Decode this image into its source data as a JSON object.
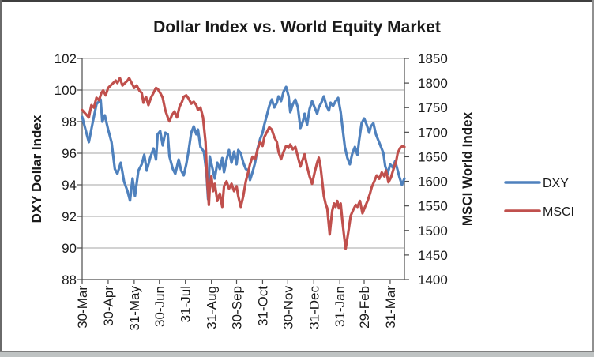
{
  "title": "Dollar Index vs. World Equity Market",
  "legend": {
    "items": [
      {
        "label": "DXY",
        "color": "#4F81BD"
      },
      {
        "label": "MSCI",
        "color": "#C0504D"
      }
    ]
  },
  "colors": {
    "dxy": "#4F81BD",
    "msci": "#C0504D",
    "gridline": "#A6A6A6",
    "axis": "#4d4d4d",
    "text": "#1a1a1a"
  },
  "chart_data": {
    "type": "line",
    "title": "Dollar Index vs. World Equity Market",
    "grid": true,
    "legend_position": "right",
    "left_axis": {
      "title": "DXY Dollar Index",
      "min": 88,
      "max": 102,
      "step": 2
    },
    "right_axis": {
      "title": "MSCI World Index",
      "min": 1400,
      "max": 1850,
      "step": 50
    },
    "x_axis": {
      "domain_days": [
        0,
        384
      ],
      "tick_days": [
        0,
        31,
        62,
        92,
        123,
        154,
        184,
        215,
        245,
        276,
        307,
        336,
        367
      ],
      "tick_labels": [
        "30-Mar",
        "30-Apr",
        "31-May",
        "30-Jun",
        "31-Jul",
        "31-Aug",
        "30-Sep",
        "31-Oct",
        "30-Nov",
        "31-Dec",
        "31-Jan",
        "29-Feb",
        "31-Mar"
      ]
    },
    "series": [
      {
        "name": "DXY",
        "axis": "left",
        "color": "#4F81BD",
        "x_days": [
          0,
          8,
          12,
          17,
          22,
          24,
          27,
          31,
          35,
          39,
          42,
          46,
          50,
          54,
          57,
          60,
          63,
          67,
          71,
          74,
          77,
          81,
          85,
          88,
          90,
          93,
          96,
          99,
          102,
          104,
          108,
          111,
          115,
          118,
          121,
          124,
          127,
          130,
          133,
          136,
          138,
          141,
          145,
          148,
          150,
          152,
          155,
          158,
          161,
          164,
          167,
          169,
          172,
          175,
          178,
          181,
          184,
          186,
          189,
          192,
          195,
          198,
          200,
          203,
          206,
          209,
          212,
          215,
          217,
          220,
          223,
          226,
          229,
          232,
          234,
          237,
          240,
          243,
          246,
          248,
          251,
          254,
          257,
          260,
          263,
          265,
          268,
          271,
          274,
          277,
          280,
          282,
          285,
          288,
          291,
          294,
          296,
          299,
          302,
          305,
          308,
          311,
          313,
          316,
          319,
          322,
          325,
          328,
          330,
          333,
          336,
          339,
          342,
          344,
          347,
          350,
          353,
          356,
          359,
          361,
          364,
          367,
          370,
          373,
          376,
          378,
          381,
          384
        ],
        "values": [
          98.3,
          96.7,
          97.8,
          99.1,
          99.4,
          98.0,
          98.4,
          97.5,
          96.7,
          95.0,
          94.7,
          95.4,
          94.2,
          93.6,
          93.0,
          94.4,
          93.3,
          94.9,
          95.3,
          95.9,
          94.9,
          95.7,
          96.3,
          95.6,
          97.2,
          97.4,
          96.5,
          97.3,
          97.2,
          95.8,
          95.0,
          94.7,
          95.6,
          94.9,
          94.6,
          95.3,
          96.2,
          97.3,
          97.7,
          97.2,
          97.5,
          96.4,
          96.1,
          94.8,
          93.1,
          95.8,
          95.1,
          94.4,
          95.4,
          95.0,
          95.7,
          94.8,
          95.6,
          96.2,
          95.4,
          96.1,
          95.3,
          96.2,
          96.0,
          95.4,
          95.0,
          94.9,
          94.3,
          94.8,
          95.4,
          96.3,
          96.9,
          97.3,
          97.8,
          98.4,
          99.0,
          99.4,
          98.9,
          99.2,
          99.6,
          99.3,
          99.9,
          100.2,
          99.6,
          98.6,
          99.1,
          99.4,
          98.9,
          97.6,
          98.0,
          98.5,
          97.8,
          98.8,
          99.3,
          98.9,
          98.5,
          98.9,
          99.2,
          99.6,
          99.0,
          98.7,
          99.2,
          99.0,
          99.3,
          99.5,
          98.6,
          97.3,
          96.4,
          95.7,
          95.3,
          96.0,
          96.4,
          95.9,
          96.8,
          97.9,
          98.2,
          97.8,
          97.3,
          97.7,
          97.9,
          97.2,
          96.8,
          96.4,
          96.0,
          95.2,
          94.7,
          95.3,
          95.1,
          95.5,
          94.9,
          94.5,
          94.0,
          94.4
        ]
      },
      {
        "name": "MSCI",
        "axis": "right",
        "color": "#C0504D",
        "x_days": [
          0,
          8,
          11,
          14,
          17,
          20,
          23,
          25,
          28,
          31,
          34,
          37,
          40,
          42,
          45,
          48,
          51,
          54,
          56,
          59,
          62,
          65,
          68,
          71,
          73,
          76,
          79,
          82,
          85,
          88,
          90,
          93,
          96,
          99,
          102,
          104,
          107,
          110,
          113,
          116,
          119,
          121,
          124,
          127,
          130,
          133,
          136,
          138,
          141,
          144,
          147,
          149,
          151,
          152,
          154,
          156,
          158,
          161,
          164,
          167,
          169,
          172,
          175,
          178,
          181,
          184,
          186,
          189,
          192,
          195,
          198,
          200,
          203,
          206,
          209,
          212,
          215,
          217,
          220,
          223,
          226,
          229,
          232,
          234,
          237,
          240,
          243,
          246,
          248,
          251,
          254,
          257,
          260,
          263,
          265,
          268,
          271,
          274,
          277,
          280,
          282,
          284,
          286,
          288,
          290,
          292,
          295,
          296,
          298,
          300,
          302,
          304,
          306,
          308,
          310,
          312,
          314,
          317,
          320,
          323,
          326,
          328,
          331,
          334,
          337,
          340,
          343,
          345,
          348,
          351,
          354,
          357,
          360,
          362,
          365,
          368,
          371,
          374,
          376,
          379,
          382,
          384
        ],
        "values": [
          1745,
          1730,
          1755,
          1750,
          1770,
          1765,
          1780,
          1785,
          1775,
          1790,
          1795,
          1800,
          1805,
          1800,
          1810,
          1795,
          1800,
          1805,
          1810,
          1800,
          1790,
          1795,
          1785,
          1780,
          1760,
          1772,
          1755,
          1770,
          1780,
          1790,
          1788,
          1780,
          1770,
          1745,
          1730,
          1722,
          1735,
          1742,
          1730,
          1752,
          1762,
          1772,
          1775,
          1768,
          1758,
          1762,
          1755,
          1745,
          1750,
          1730,
          1680,
          1600,
          1552,
          1585,
          1610,
          1580,
          1595,
          1560,
          1575,
          1548,
          1590,
          1600,
          1585,
          1595,
          1580,
          1590,
          1570,
          1548,
          1570,
          1600,
          1620,
          1635,
          1650,
          1645,
          1665,
          1680,
          1672,
          1690,
          1700,
          1710,
          1705,
          1690,
          1680,
          1660,
          1645,
          1660,
          1672,
          1668,
          1675,
          1665,
          1670,
          1650,
          1630,
          1645,
          1655,
          1630,
          1610,
          1595,
          1618,
          1638,
          1648,
          1630,
          1600,
          1570,
          1555,
          1545,
          1492,
          1510,
          1540,
          1555,
          1548,
          1560,
          1545,
          1555,
          1520,
          1490,
          1463,
          1495,
          1530,
          1542,
          1552,
          1548,
          1560,
          1535,
          1548,
          1560,
          1575,
          1588,
          1600,
          1612,
          1605,
          1618,
          1610,
          1622,
          1598,
          1608,
          1625,
          1640,
          1658,
          1668,
          1672,
          1670
        ]
      }
    ]
  }
}
